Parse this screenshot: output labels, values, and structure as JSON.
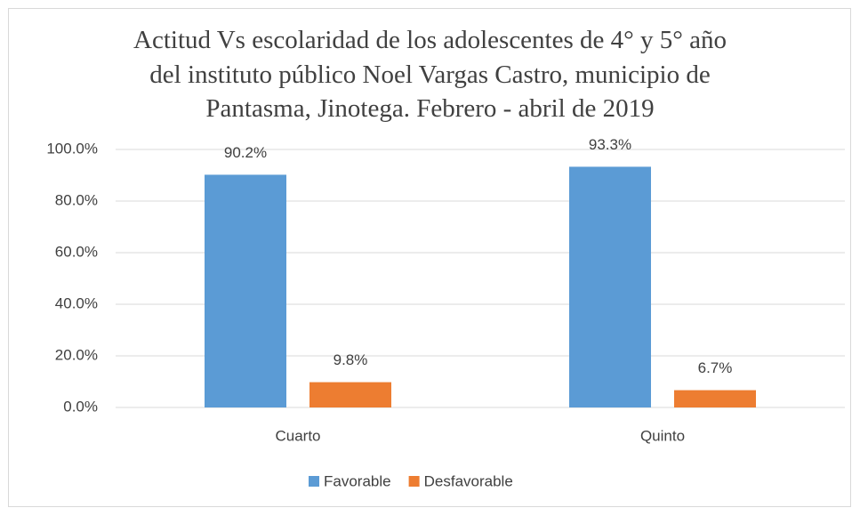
{
  "chart_data": {
    "type": "bar",
    "title": "Actitud Vs escolaridad de los adolescentes de 4° y 5° año\ndel instituto público Noel Vargas Castro, municipio de\nPantasma, Jinotega. Febrero - abril de 2019",
    "categories": [
      "Cuarto",
      "Quinto"
    ],
    "series": [
      {
        "name": "Favorable",
        "color": "#5b9bd5",
        "values": [
          90.2,
          93.3
        ],
        "value_labels": [
          "90.2%",
          "93.3%"
        ]
      },
      {
        "name": "Desfavorable",
        "color": "#ed7d31",
        "values": [
          9.8,
          6.7
        ],
        "value_labels": [
          "9.8%",
          "6.7%"
        ]
      }
    ],
    "ylim": [
      0,
      100
    ],
    "yticks": [
      {
        "value": 0,
        "label": "0.0%"
      },
      {
        "value": 20,
        "label": "20.0%"
      },
      {
        "value": 40,
        "label": "40.0%"
      },
      {
        "value": 60,
        "label": "60.0%"
      },
      {
        "value": 80,
        "label": "80.0%"
      },
      {
        "value": 100,
        "label": "100.0%"
      }
    ],
    "grid": true,
    "legend": "bottom"
  }
}
